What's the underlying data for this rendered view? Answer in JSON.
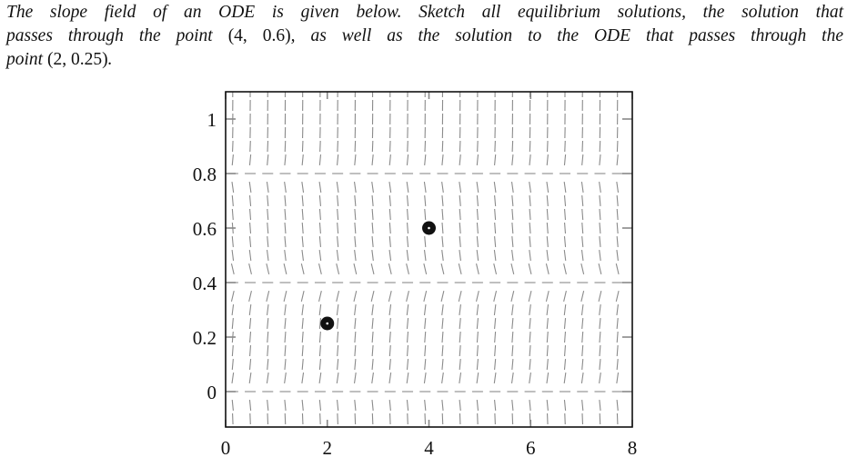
{
  "problem": {
    "lines": [
      [
        "The slope field of an ODE is given below.  Sketch all equilibrium solutions, the solution that"
      ],
      [
        "passes through the point ",
        "(4, 0.6)",
        ", as well as the solution to the ODE that passes through the"
      ],
      [
        "point ",
        "(2, 0.25)",
        "."
      ]
    ],
    "line1": "The slope field of an ODE is given below.  Sketch all equilibrium solutions, the solution that",
    "line2_pre": "passes through the point ",
    "line2_math": "(4, 0.6)",
    "line2_post": ", as well as the solution to the ODE that passes through the",
    "line3_pre": "point ",
    "line3_math": "(2, 0.25)",
    "line3_post": "."
  },
  "chart_data": {
    "type": "slope_field",
    "title": "",
    "xlabel": "",
    "ylabel": "",
    "xlim": [
      0,
      8
    ],
    "ylim": [
      -0.13,
      1.1
    ],
    "x_ticks": [
      0,
      2,
      4,
      6,
      8
    ],
    "x_tick_labels": [
      "0",
      "2",
      "4",
      "6",
      "8"
    ],
    "y_ticks": [
      0,
      0.2,
      0.4,
      0.6,
      0.8,
      1
    ],
    "y_tick_labels": [
      "0",
      "0.2",
      "0.4",
      "0.6",
      "0.8",
      "1"
    ],
    "grid": false,
    "equilibrium_solutions_y": [
      0,
      0.4,
      0.8
    ],
    "slope_sign_by_band": [
      {
        "range": "y > 0.8",
        "sign": "positive"
      },
      {
        "range": "0.4 < y < 0.8",
        "sign": "negative"
      },
      {
        "range": "0 < y < 0.4",
        "sign": "positive"
      },
      {
        "range": "y < 0",
        "sign": "negative"
      }
    ],
    "field_model": "dy/dx = k * y * (y - 0.4) * (y - 0.8)",
    "field_k": 100,
    "field_grid": {
      "x_start": 0.14,
      "x_step": 0.344,
      "x_count": 23,
      "y_start": 1.1,
      "y_step": -0.05,
      "y_count": 25
    },
    "marked_points": [
      {
        "x": 4,
        "y": 0.6,
        "label": "(4, 0.6)"
      },
      {
        "x": 2,
        "y": 0.25,
        "label": "(2, 0.25)"
      }
    ],
    "colors": {
      "segment": "#8a8a8a",
      "axis": "#111111",
      "point": "#111111"
    }
  }
}
